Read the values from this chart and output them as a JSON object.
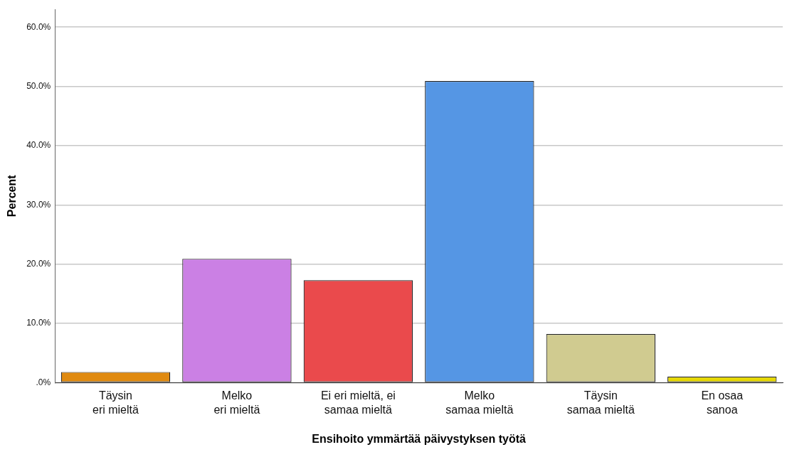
{
  "chart_data": {
    "type": "bar",
    "xlabel": "Ensihoito ymmärtää päivystyksen työtä",
    "ylabel": "Percent",
    "categories": [
      "Täysin eri mieltä",
      "Melko eri mieltä",
      "Ei eri mieltä, ei samaa mieltä",
      "Melko samaa mieltä",
      "Täysin samaa mieltä",
      "En osaa sanoa"
    ],
    "values": [
      1.8,
      20.9,
      17.3,
      50.9,
      8.2,
      1.0
    ],
    "colors": [
      "#e08a10",
      "#cb80e4",
      "#ea4a4c",
      "#5596e4",
      "#d0cb90",
      "#e6d800"
    ],
    "ylim": [
      0,
      63
    ],
    "yticks": [
      {
        "value": 0,
        "label": ".0%"
      },
      {
        "value": 10,
        "label": "10.0%"
      },
      {
        "value": 20,
        "label": "20.0%"
      },
      {
        "value": 30,
        "label": "30.0%"
      },
      {
        "value": 40,
        "label": "40.0%"
      },
      {
        "value": 50,
        "label": "50.0%"
      },
      {
        "value": 60,
        "label": "60.0%"
      }
    ],
    "grid": "y",
    "legend": false
  }
}
